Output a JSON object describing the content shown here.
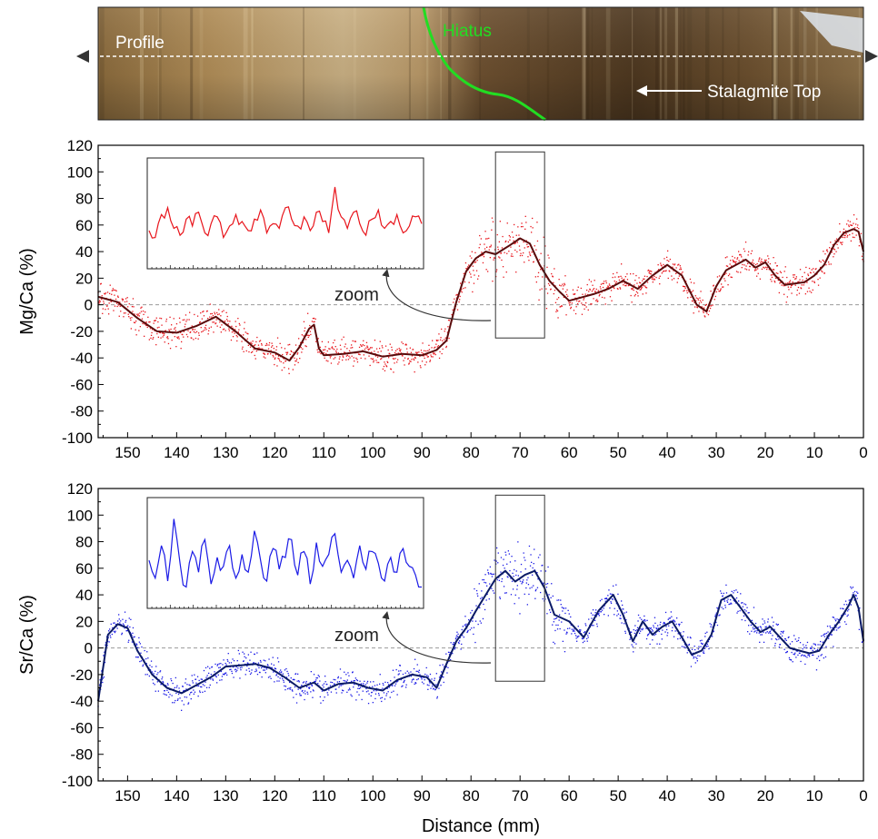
{
  "photo": {
    "profile_label": "Profile",
    "hiatus_label": "Hiatus",
    "top_label": "Stalagmite Top",
    "colors": {
      "hiatus": "#22dd22",
      "labels": "#ffffff",
      "arrow": "#333333"
    }
  },
  "chart_data": [
    {
      "type": "scatter",
      "ylabel": "Mg/Ca (%)",
      "xlabel": "",
      "xlim": [
        156,
        0
      ],
      "ylim": [
        -100,
        120
      ],
      "x_ticks": [
        150,
        140,
        130,
        120,
        110,
        100,
        90,
        80,
        70,
        60,
        50,
        40,
        30,
        20,
        10,
        0
      ],
      "y_ticks": [
        -100,
        -80,
        -60,
        -40,
        -20,
        0,
        20,
        40,
        60,
        80,
        100,
        120
      ],
      "x_tick_labels": [
        "150",
        "140",
        "130",
        "120",
        "110",
        "100",
        "90",
        "80",
        "70",
        "60",
        "50",
        "40",
        "30",
        "20",
        "10",
        "0"
      ],
      "y_tick_labels": [
        "-100",
        "-80",
        "-60",
        "-40",
        "-20",
        "0",
        "20",
        "40",
        "60",
        "80",
        "100",
        "120"
      ],
      "zero_line": true,
      "color_points": "#e8141b",
      "color_line": "#5a0b0b",
      "zoom_window": {
        "x": [
          75,
          65
        ],
        "y": [
          -25,
          115
        ]
      },
      "zoom_label": "zoom",
      "smoothed": {
        "x": [
          156,
          152,
          148,
          144,
          140,
          136,
          132,
          128,
          124,
          120,
          117,
          115,
          113,
          112,
          111,
          110,
          106,
          102,
          98,
          94,
          90,
          87,
          85,
          83,
          81,
          79,
          77,
          75,
          72,
          70,
          68,
          66,
          64,
          62,
          60,
          58,
          55,
          52,
          49,
          46,
          43,
          40,
          37,
          34,
          32,
          30,
          28,
          26,
          24,
          22,
          20,
          18,
          16,
          14,
          12,
          10,
          8,
          6,
          4,
          2,
          1,
          0
        ],
        "y": [
          6,
          2,
          -10,
          -20,
          -21,
          -16,
          -9,
          -20,
          -33,
          -36,
          -42,
          -32,
          -18,
          -15,
          -33,
          -38,
          -37,
          -35,
          -39,
          -37,
          -38,
          -34,
          -27,
          2,
          25,
          35,
          40,
          38,
          45,
          50,
          46,
          30,
          18,
          10,
          3,
          5,
          8,
          12,
          18,
          12,
          22,
          30,
          22,
          0,
          -5,
          14,
          26,
          30,
          34,
          28,
          32,
          22,
          15,
          16,
          17,
          22,
          30,
          45,
          54,
          57,
          55,
          40
        ]
      },
      "inset_series": [
        10,
        4,
        24,
        30,
        12,
        6,
        20,
        14,
        26,
        8,
        16,
        22,
        4,
        14,
        24,
        18,
        10,
        20,
        28,
        8,
        16,
        12,
        30,
        20,
        14,
        22,
        10,
        26,
        18,
        8,
        48,
        22,
        12,
        26,
        16,
        6,
        20,
        28,
        12,
        18,
        24,
        8,
        14,
        22,
        16
      ],
      "inset_ylim": [
        -20,
        70
      ]
    },
    {
      "type": "scatter",
      "ylabel": "Sr/Ca (%)",
      "xlabel": "Distance (mm)",
      "xlim": [
        156,
        0
      ],
      "ylim": [
        -100,
        120
      ],
      "x_ticks": [
        150,
        140,
        130,
        120,
        110,
        100,
        90,
        80,
        70,
        60,
        50,
        40,
        30,
        20,
        10,
        0
      ],
      "y_ticks": [
        -100,
        -80,
        -60,
        -40,
        -20,
        0,
        20,
        40,
        60,
        80,
        100,
        120
      ],
      "x_tick_labels": [
        "150",
        "140",
        "130",
        "120",
        "110",
        "100",
        "90",
        "80",
        "70",
        "60",
        "50",
        "40",
        "30",
        "20",
        "10",
        "0"
      ],
      "y_tick_labels": [
        "-100",
        "-80",
        "-60",
        "-40",
        "-20",
        "0",
        "20",
        "40",
        "60",
        "80",
        "100",
        "120"
      ],
      "zero_line": true,
      "color_points": "#1a1ae6",
      "color_line": "#0a1a66",
      "zoom_window": {
        "x": [
          75,
          65
        ],
        "y": [
          -25,
          115
        ]
      },
      "zoom_label": "zoom",
      "smoothed": {
        "x": [
          156,
          154,
          152,
          150,
          148,
          145,
          142,
          139,
          136,
          133,
          130,
          127,
          124,
          121,
          118,
          115,
          112,
          110,
          107,
          104,
          101,
          98,
          95,
          92,
          89,
          87,
          85,
          83,
          81,
          79,
          77,
          75,
          73,
          71,
          69,
          67,
          65,
          63,
          60,
          57,
          54,
          51,
          49,
          47,
          45,
          43,
          41,
          39,
          37,
          35,
          33,
          31,
          29,
          27,
          25,
          23,
          21,
          19,
          17,
          15,
          13,
          11,
          9,
          7,
          5,
          3,
          2,
          1,
          0
        ],
        "y": [
          -40,
          10,
          18,
          15,
          -2,
          -20,
          -30,
          -34,
          -28,
          -22,
          -14,
          -13,
          -12,
          -15,
          -22,
          -30,
          -26,
          -32,
          -27,
          -26,
          -30,
          -32,
          -24,
          -20,
          -22,
          -30,
          -12,
          5,
          15,
          28,
          40,
          52,
          58,
          50,
          55,
          58,
          45,
          25,
          20,
          8,
          28,
          40,
          25,
          5,
          20,
          10,
          16,
          20,
          8,
          -5,
          -2,
          10,
          36,
          40,
          30,
          20,
          12,
          16,
          8,
          0,
          -2,
          -4,
          -2,
          10,
          20,
          32,
          40,
          30,
          5
        ]
      },
      "inset_series": [
        20,
        8,
        30,
        6,
        48,
        18,
        2,
        26,
        12,
        34,
        4,
        22,
        16,
        30,
        8,
        24,
        12,
        40,
        20,
        6,
        28,
        14,
        22,
        34,
        10,
        26,
        4,
        32,
        16,
        24,
        38,
        12,
        20,
        8,
        30,
        14,
        26,
        18,
        6,
        22,
        12,
        28,
        16,
        10,
        2
      ],
      "inset_ylim": [
        -10,
        60
      ]
    }
  ]
}
